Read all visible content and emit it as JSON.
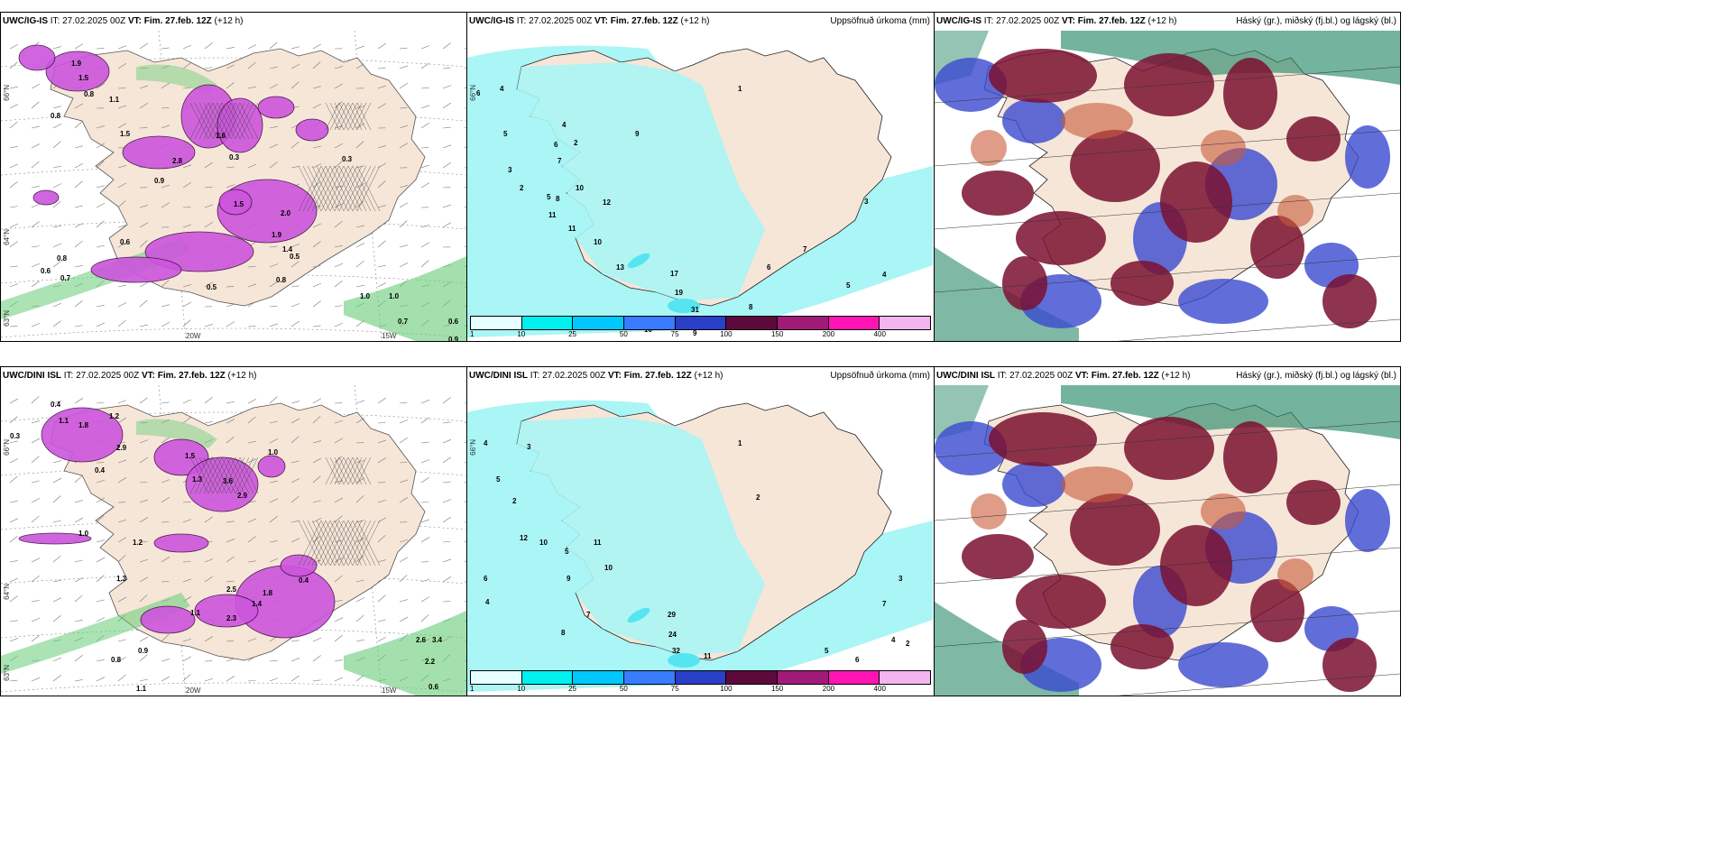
{
  "panels": [
    {
      "id": "igis-wind",
      "model": "UWC/IG-IS",
      "it": "IT: 27.02.2025 00Z",
      "vt": "VT: Fim. 27.feb. 12Z",
      "lead": "(+12 h)",
      "right_title": "",
      "axes": {
        "lat1": "66°N",
        "lat2": "64°N",
        "lat3": "63°N",
        "lon1": "20W",
        "lon2": "15W"
      },
      "labels": [
        "1.9",
        "1.5",
        "0.8",
        "1.1",
        "0.8",
        "1.5",
        "2.8",
        "0.9",
        "1.6",
        "0.3",
        "0.3",
        "1.5",
        "2.0",
        "1.9",
        "1.4",
        "0.5",
        "0.8",
        "0.5",
        "0.6",
        "0.8",
        "0.7",
        "0.6",
        "1.0",
        "1.0",
        "0.7",
        "0.6",
        "0.9"
      ]
    },
    {
      "id": "igis-precip",
      "model": "UWC/IG-IS",
      "it": "IT: 27.02.2025 00Z",
      "vt": "VT: Fim. 27.feb. 12Z",
      "lead": "(+12 h)",
      "right_title": "Uppsöfnuð úrkoma (mm)",
      "axes": {
        "lat1": "66°N",
        "lat2": "",
        "lat3": "",
        "lon1": "",
        "lon2": ""
      },
      "labels": [
        "6",
        "4",
        "5",
        "3",
        "2",
        "4",
        "8",
        "10",
        "11",
        "12",
        "13",
        "9",
        "6",
        "7",
        "5",
        "2",
        "1",
        "11",
        "10",
        "17",
        "19",
        "31",
        "8",
        "10",
        "9",
        "6",
        "7",
        "5",
        "4",
        "3"
      ]
    },
    {
      "id": "igis-cloud",
      "model": "UWC/IG-IS",
      "it": "IT: 27.02.2025 00Z",
      "vt": "VT: Fim. 27.feb. 12Z",
      "lead": "(+12 h)",
      "right_title": "Háský (gr.), miðský (fj.bl.) og lágský (bl.)",
      "axes": {
        "lat1": "",
        "lat2": "",
        "lat3": "",
        "lon1": "",
        "lon2": ""
      },
      "labels": []
    },
    {
      "id": "dini-wind",
      "model": "UWC/DINI ISL",
      "it": "IT: 27.02.2025 00Z",
      "vt": "VT: Fim. 27.feb. 12Z",
      "lead": "(+12 h)",
      "right_title": "",
      "axes": {
        "lat1": "66°N",
        "lat2": "64°N",
        "lat3": "63°N",
        "lon1": "20W",
        "lon2": "15W"
      },
      "labels": [
        "0.4",
        "1.1",
        "1.8",
        "1.2",
        "2.9",
        "1.5",
        "3.6",
        "2.9",
        "1.0",
        "0.4",
        "1.3",
        "0.3",
        "1.0",
        "1.2",
        "1.3",
        "2.5",
        "1.8",
        "0.4",
        "1.4",
        "2.3",
        "1.1",
        "0.9",
        "2.6",
        "3.4",
        "2.2",
        "0.6",
        "0.8",
        "1.1"
      ]
    },
    {
      "id": "dini-precip",
      "model": "UWC/DINI ISL",
      "it": "IT: 27.02.2025 00Z",
      "vt": "VT: Fim. 27.feb. 12Z",
      "lead": "(+12 h)",
      "right_title": "Uppsöfnuð úrkoma (mm)",
      "axes": {
        "lat1": "66°N",
        "lat2": "",
        "lat3": "",
        "lon1": "",
        "lon2": ""
      },
      "labels": [
        "4",
        "3",
        "5",
        "2",
        "6",
        "12",
        "10",
        "11",
        "9",
        "8",
        "7",
        "5",
        "1",
        "2",
        "29",
        "24",
        "32",
        "11",
        "10",
        "4",
        "3",
        "7",
        "6",
        "5",
        "4",
        "2"
      ]
    },
    {
      "id": "dini-cloud",
      "model": "UWC/DINI ISL",
      "it": "IT: 27.02.2025 00Z",
      "vt": "VT: Fim. 27.feb. 12Z",
      "lead": "(+12 h)",
      "right_title": "Háský (gr.), miðský (fj.bl.) og lágský (bl.)",
      "axes": {
        "lat1": "",
        "lat2": "",
        "lat3": "",
        "lon1": "",
        "lon2": ""
      },
      "labels": []
    }
  ],
  "colorbar": {
    "labels": [
      "1",
      "10",
      "25",
      "50",
      "75",
      "100",
      "150",
      "200",
      "400"
    ],
    "colors": [
      "#e6ffff",
      "#00f0f0",
      "#00c8ff",
      "#3a7cff",
      "#2a3fc8",
      "#5c0a3c",
      "#a01a78",
      "#ff14b4",
      "#f4b4f0"
    ]
  },
  "colors": {
    "land": "#f6e6d8",
    "precip_light": "#aaf5f5",
    "precip_mid": "#55e5f0",
    "wind_precip": "#cc55dd",
    "green": "#66cc77",
    "high_cloud": "#7a1030",
    "mid_cloud": "#3a4ad0",
    "low_cloud": "#2a8a6a"
  }
}
